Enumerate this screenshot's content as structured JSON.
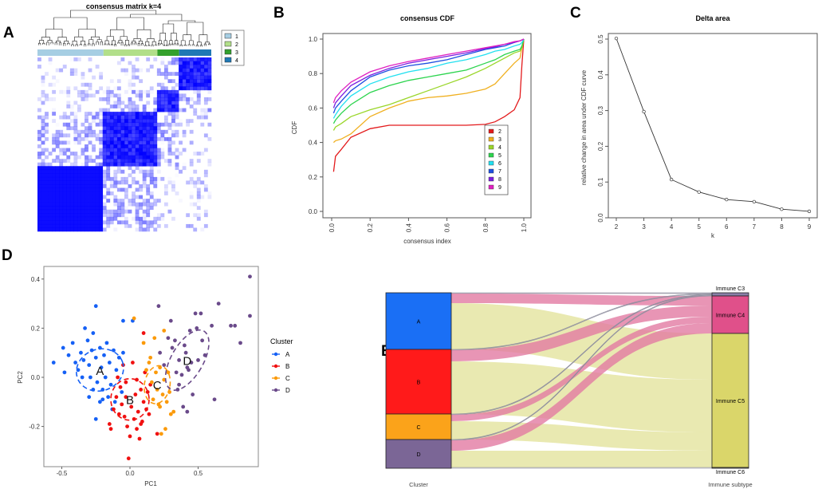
{
  "panels": {
    "a": "A",
    "b": "B",
    "c": "C",
    "d": "D",
    "e": "E"
  },
  "chart_data": [
    {
      "type": "heatmap",
      "panel": "A",
      "title": "consensus matrix k=4",
      "legend": {
        "placement": "right",
        "entries": [
          {
            "label": "1",
            "color": "#a6cee3"
          },
          {
            "label": "2",
            "color": "#b2df8a"
          },
          {
            "label": "3",
            "color": "#33a02c"
          },
          {
            "label": "4",
            "color": "#1f78b4"
          }
        ]
      },
      "cluster_fractions": [
        0.38,
        0.31,
        0.125,
        0.185
      ],
      "cell_color": "#0000ff"
    },
    {
      "type": "line",
      "panel": "B",
      "title": "consensus CDF",
      "xlabel": "consensus index",
      "ylabel": "CDF",
      "xlim": [
        0,
        1
      ],
      "ylim": [
        0,
        1
      ],
      "xticks": [
        "0.0",
        "0.2",
        "0.4",
        "0.6",
        "0.8",
        "1.0"
      ],
      "yticks": [
        "0.0",
        "0.2",
        "0.4",
        "0.6",
        "0.8",
        "1.0"
      ],
      "legend_placement": "bottom-right",
      "x": [
        0.01,
        0.02,
        0.05,
        0.1,
        0.2,
        0.3,
        0.4,
        0.5,
        0.6,
        0.7,
        0.8,
        0.85,
        0.9,
        0.95,
        0.98,
        0.99,
        1.0
      ],
      "series": [
        {
          "name": "2",
          "color": "#e31a1c",
          "values": [
            0.23,
            0.32,
            0.36,
            0.43,
            0.48,
            0.5,
            0.5,
            0.5,
            0.5,
            0.5,
            0.505,
            0.52,
            0.55,
            0.59,
            0.66,
            0.85,
            1.0
          ]
        },
        {
          "name": "3",
          "color": "#f0b020",
          "values": [
            0.4,
            0.41,
            0.42,
            0.45,
            0.55,
            0.6,
            0.64,
            0.66,
            0.67,
            0.685,
            0.71,
            0.74,
            0.8,
            0.86,
            0.89,
            0.95,
            1.0
          ]
        },
        {
          "name": "4",
          "color": "#9ad62a",
          "values": [
            0.47,
            0.49,
            0.51,
            0.55,
            0.59,
            0.62,
            0.66,
            0.7,
            0.74,
            0.78,
            0.83,
            0.86,
            0.89,
            0.92,
            0.93,
            0.95,
            1.0
          ]
        },
        {
          "name": "5",
          "color": "#2cd44e",
          "values": [
            0.51,
            0.53,
            0.57,
            0.62,
            0.69,
            0.73,
            0.76,
            0.78,
            0.8,
            0.82,
            0.86,
            0.88,
            0.91,
            0.93,
            0.94,
            0.96,
            1.0
          ]
        },
        {
          "name": "6",
          "color": "#22e0f0",
          "values": [
            0.54,
            0.56,
            0.61,
            0.67,
            0.74,
            0.78,
            0.81,
            0.83,
            0.86,
            0.88,
            0.91,
            0.93,
            0.94,
            0.96,
            0.97,
            0.98,
            1.0
          ]
        },
        {
          "name": "7",
          "color": "#1e50e0",
          "values": [
            0.57,
            0.6,
            0.64,
            0.7,
            0.78,
            0.82,
            0.845,
            0.86,
            0.88,
            0.91,
            0.94,
            0.95,
            0.96,
            0.98,
            0.99,
            0.995,
            1.0
          ]
        },
        {
          "name": "8",
          "color": "#7a1ee0",
          "values": [
            0.6,
            0.63,
            0.67,
            0.73,
            0.79,
            0.83,
            0.86,
            0.88,
            0.9,
            0.92,
            0.945,
            0.955,
            0.97,
            0.98,
            0.99,
            0.995,
            1.0
          ]
        },
        {
          "name": "9",
          "color": "#e020c0",
          "values": [
            0.63,
            0.66,
            0.7,
            0.75,
            0.81,
            0.845,
            0.87,
            0.89,
            0.91,
            0.93,
            0.95,
            0.96,
            0.97,
            0.985,
            0.99,
            0.995,
            1.0
          ]
        }
      ]
    },
    {
      "type": "line",
      "panel": "C",
      "title": "Delta area",
      "xlabel": "k",
      "ylabel": "relative change in area under CDF curve",
      "xticks": [
        "2",
        "3",
        "4",
        "5",
        "6",
        "7",
        "8",
        "9"
      ],
      "yticks": [
        "0.0",
        "0.1",
        "0.2",
        "0.3",
        "0.4",
        "0.5"
      ],
      "ylim": [
        0,
        0.52
      ],
      "x": [
        2,
        3,
        4,
        5,
        6,
        7,
        8,
        9
      ],
      "values": [
        0.502,
        0.297,
        0.107,
        0.072,
        0.051,
        0.045,
        0.024,
        0.018
      ]
    },
    {
      "type": "scatter",
      "panel": "D",
      "xlabel": "PC1",
      "ylabel": "PC2",
      "xticks": [
        "-0.5",
        "0.0",
        "0.5"
      ],
      "yticks": [
        "-0.2",
        "0.0",
        "0.2",
        "0.4"
      ],
      "legend": {
        "title": "Cluster",
        "placement": "right"
      },
      "series": [
        {
          "name": "A",
          "color": "#1560f5",
          "center": [
            -0.22,
            0.03
          ],
          "points": [
            [
              -0.56,
              0.06
            ],
            [
              -0.48,
              0.02
            ],
            [
              -0.49,
              0.12
            ],
            [
              -0.45,
              0.09
            ],
            [
              -0.42,
              0.14
            ],
            [
              -0.4,
              0.06
            ],
            [
              -0.38,
              0.03
            ],
            [
              -0.36,
              0.1
            ],
            [
              -0.34,
              0.07
            ],
            [
              -0.33,
              0.2
            ],
            [
              -0.31,
              0.15
            ],
            [
              -0.3,
              0.05
            ],
            [
              -0.29,
              0.0
            ],
            [
              -0.28,
              0.11
            ],
            [
              -0.27,
              0.18
            ],
            [
              -0.25,
              0.29
            ],
            [
              -0.25,
              0.08
            ],
            [
              -0.24,
              -0.02
            ],
            [
              -0.22,
              0.12
            ],
            [
              -0.21,
              0.04
            ],
            [
              -0.2,
              -0.05
            ],
            [
              -0.19,
              0.09
            ],
            [
              -0.18,
              0.0
            ],
            [
              -0.17,
              0.14
            ],
            [
              -0.16,
              -0.08
            ],
            [
              -0.15,
              0.06
            ],
            [
              -0.14,
              -0.03
            ],
            [
              -0.12,
              0.11
            ],
            [
              -0.11,
              -0.1
            ],
            [
              -0.1,
              0.03
            ],
            [
              -0.08,
              0.08
            ],
            [
              -0.06,
              -0.06
            ],
            [
              -0.05,
              0.23
            ],
            [
              0.02,
              0.23
            ],
            [
              -0.05,
              0.1
            ],
            [
              -0.3,
              -0.08
            ],
            [
              -0.25,
              -0.17
            ],
            [
              -0.2,
              -0.09
            ],
            [
              -0.35,
              0.0
            ],
            [
              -0.27,
              -0.05
            ],
            [
              -0.13,
              -0.13
            ],
            [
              -0.22,
              -0.1
            ]
          ]
        },
        {
          "name": "B",
          "color": "#f01010",
          "center": [
            0.0,
            -0.09
          ],
          "points": [
            [
              -0.15,
              -0.19
            ],
            [
              -0.14,
              -0.21
            ],
            [
              -0.12,
              -0.13
            ],
            [
              -0.1,
              -0.08
            ],
            [
              -0.08,
              -0.15
            ],
            [
              -0.07,
              -0.04
            ],
            [
              -0.06,
              -0.11
            ],
            [
              -0.05,
              0.05
            ],
            [
              -0.04,
              -0.16
            ],
            [
              -0.03,
              -0.02
            ],
            [
              -0.02,
              -0.2
            ],
            [
              -0.01,
              -0.33
            ],
            [
              0.0,
              -0.24
            ],
            [
              0.01,
              -0.12
            ],
            [
              0.02,
              0.06
            ],
            [
              0.03,
              -0.17
            ],
            [
              0.04,
              -0.07
            ],
            [
              0.05,
              -0.01
            ],
            [
              0.06,
              -0.14
            ],
            [
              0.07,
              -0.25
            ],
            [
              0.08,
              -0.05
            ],
            [
              0.09,
              -0.18
            ],
            [
              0.1,
              0.18
            ],
            [
              0.1,
              -0.1
            ],
            [
              0.11,
              0.02
            ],
            [
              0.12,
              -0.13
            ],
            [
              0.13,
              -0.06
            ],
            [
              0.14,
              -0.15
            ],
            [
              0.15,
              -0.03
            ],
            [
              -0.09,
              0.0
            ],
            [
              0.2,
              -0.23
            ],
            [
              0.05,
              -0.21
            ],
            [
              -0.03,
              -0.08
            ],
            [
              0.08,
              -0.19
            ]
          ]
        },
        {
          "name": "C",
          "color": "#fb9a0a",
          "center": [
            0.2,
            -0.03
          ],
          "points": [
            [
              0.1,
              0.14
            ],
            [
              0.12,
              0.03
            ],
            [
              0.14,
              0.06
            ],
            [
              0.16,
              -0.02
            ],
            [
              0.17,
              -0.09
            ],
            [
              0.18,
              0.16
            ],
            [
              0.19,
              0.02
            ],
            [
              0.2,
              -0.05
            ],
            [
              0.21,
              -0.11
            ],
            [
              0.22,
              0.04
            ],
            [
              0.23,
              -0.23
            ],
            [
              0.24,
              -0.07
            ],
            [
              0.25,
              0.19
            ],
            [
              0.25,
              -0.01
            ],
            [
              0.26,
              -0.21
            ],
            [
              0.27,
              -0.1
            ],
            [
              0.28,
              0.02
            ],
            [
              0.29,
              -0.06
            ],
            [
              0.3,
              -0.15
            ],
            [
              0.32,
              -0.14
            ],
            [
              0.03,
              0.24
            ],
            [
              0.15,
              0.08
            ],
            [
              0.22,
              -0.12
            ]
          ]
        },
        {
          "name": "D",
          "color": "#6a4a8a",
          "center": [
            0.42,
            0.07
          ],
          "points": [
            [
              0.21,
              0.29
            ],
            [
              0.22,
              0.1
            ],
            [
              0.25,
              0.05
            ],
            [
              0.28,
              0.16
            ],
            [
              0.3,
              0.23
            ],
            [
              0.31,
              0.12
            ],
            [
              0.33,
              0.15
            ],
            [
              0.34,
              0.02
            ],
            [
              0.35,
              -0.05
            ],
            [
              0.36,
              0.07
            ],
            [
              0.38,
              0.01
            ],
            [
              0.39,
              -0.12
            ],
            [
              0.4,
              0.13
            ],
            [
              0.41,
              0.1
            ],
            [
              0.42,
              -0.14
            ],
            [
              0.43,
              0.03
            ],
            [
              0.44,
              0.19
            ],
            [
              0.45,
              0.06
            ],
            [
              0.46,
              -0.07
            ],
            [
              0.48,
              0.26
            ],
            [
              0.49,
              0.2
            ],
            [
              0.5,
              0.07
            ],
            [
              0.52,
              0.26
            ],
            [
              0.53,
              0.15
            ],
            [
              0.55,
              0.09
            ],
            [
              0.6,
              0.21
            ],
            [
              0.62,
              -0.09
            ],
            [
              0.65,
              0.3
            ],
            [
              0.74,
              0.21
            ],
            [
              0.77,
              0.21
            ],
            [
              0.81,
              0.14
            ],
            [
              0.88,
              0.41
            ],
            [
              0.88,
              0.25
            ],
            [
              0.42,
              0.04
            ],
            [
              0.36,
              -0.03
            ]
          ]
        }
      ]
    },
    {
      "type": "sankey",
      "panel": "E",
      "left_axis": "Cluster",
      "right_axis": "Immune subtype",
      "left_nodes": [
        {
          "name": "A",
          "color": "#1a6ff5"
        },
        {
          "name": "B",
          "color": "#ff1a1a"
        },
        {
          "name": "C",
          "color": "#fba31a"
        },
        {
          "name": "D",
          "color": "#7b6696"
        }
      ],
      "right_nodes": [
        {
          "name": "Immune C3",
          "color": "#8a7fa8"
        },
        {
          "name": "Immune C4",
          "color": "#e0508a"
        },
        {
          "name": "Immune C5",
          "color": "#dad66a"
        },
        {
          "name": "Immune C6",
          "color": "#999999"
        }
      ],
      "flows": [
        [
          "A",
          "Immune C3",
          1
        ],
        [
          "A",
          "Immune C4",
          12
        ],
        [
          "A",
          "Immune C5",
          58
        ],
        [
          "B",
          "Immune C3",
          1
        ],
        [
          "B",
          "Immune C4",
          14
        ],
        [
          "B",
          "Immune C5",
          66
        ],
        [
          "C",
          "Immune C3",
          1
        ],
        [
          "C",
          "Immune C4",
          8
        ],
        [
          "C",
          "Immune C5",
          23
        ],
        [
          "D",
          "Immune C3",
          1
        ],
        [
          "D",
          "Immune C4",
          13
        ],
        [
          "D",
          "Immune C5",
          21
        ],
        [
          "D",
          "Immune C6",
          1
        ]
      ],
      "flow_colors": {
        "Immune C3": "#8e8e9e",
        "Immune C4": "#e27aa2",
        "Immune C5": "#e4e39e",
        "Immune C6": "#cccccc"
      }
    }
  ]
}
